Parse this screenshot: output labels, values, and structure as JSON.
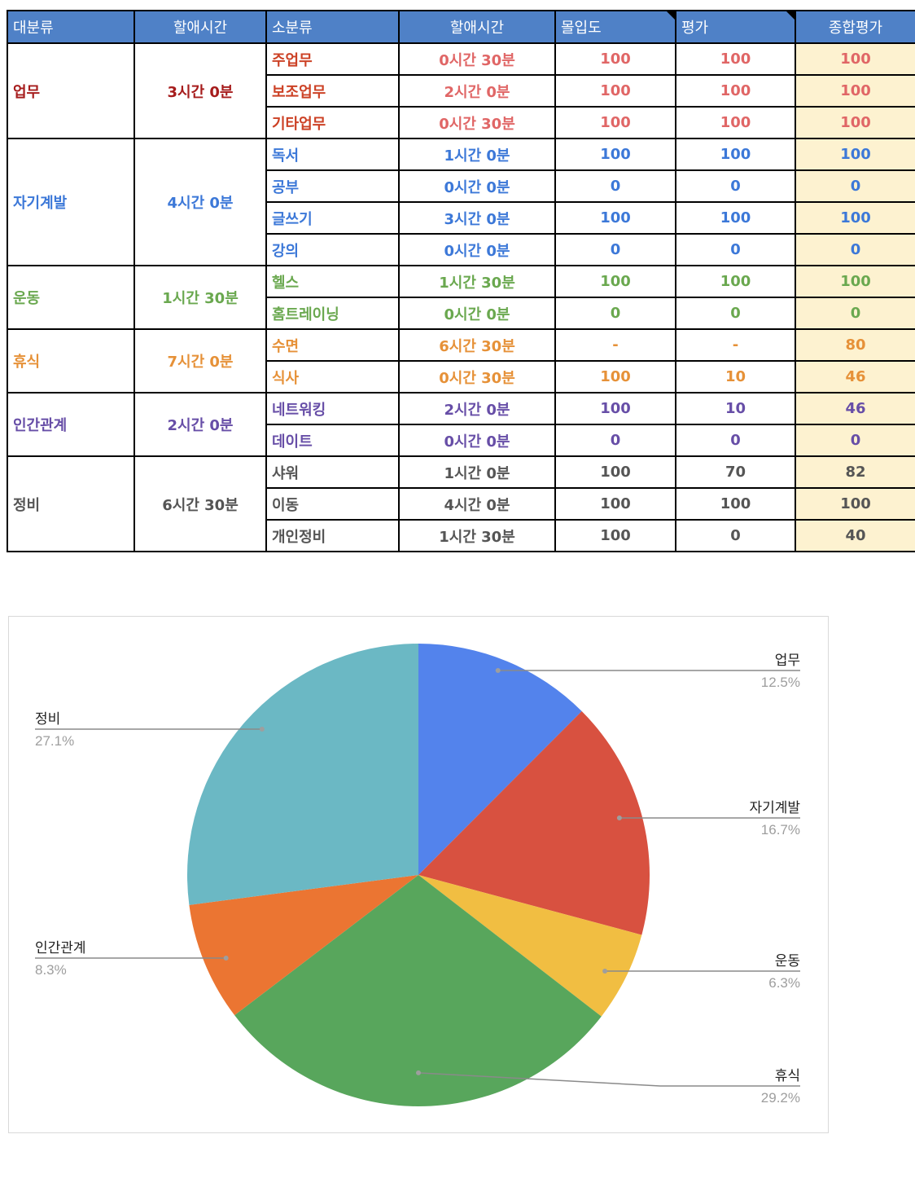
{
  "table": {
    "headers": [
      "대분류",
      "할애시간",
      "소분류",
      "할애시간",
      "몰입도",
      "평가",
      "종합평가"
    ],
    "groups": [
      {
        "name": "업무",
        "time": "3시간 0분",
        "color": "red",
        "items": [
          {
            "name": "주업무",
            "time": "0시간 30분",
            "focus": "100",
            "eval": "100",
            "total": "100"
          },
          {
            "name": "보조업무",
            "time": "2시간 0분",
            "focus": "100",
            "eval": "100",
            "total": "100"
          },
          {
            "name": "기타업무",
            "time": "0시간 30분",
            "focus": "100",
            "eval": "100",
            "total": "100"
          }
        ]
      },
      {
        "name": "자기계발",
        "time": "4시간 0분",
        "color": "blue",
        "items": [
          {
            "name": "독서",
            "time": "1시간 0분",
            "focus": "100",
            "eval": "100",
            "total": "100"
          },
          {
            "name": "공부",
            "time": "0시간 0분",
            "focus": "0",
            "eval": "0",
            "total": "0"
          },
          {
            "name": "글쓰기",
            "time": "3시간 0분",
            "focus": "100",
            "eval": "100",
            "total": "100"
          },
          {
            "name": "강의",
            "time": "0시간 0분",
            "focus": "0",
            "eval": "0",
            "total": "0"
          }
        ]
      },
      {
        "name": "운동",
        "time": "1시간 30분",
        "color": "green",
        "items": [
          {
            "name": "헬스",
            "time": "1시간 30분",
            "focus": "100",
            "eval": "100",
            "total": "100"
          },
          {
            "name": "홈트레이닝",
            "time": "0시간 0분",
            "focus": "0",
            "eval": "0",
            "total": "0"
          }
        ]
      },
      {
        "name": "휴식",
        "time": "7시간 0분",
        "color": "orange",
        "items": [
          {
            "name": "수면",
            "time": "6시간 30분",
            "focus": "-",
            "eval": "-",
            "total": "80"
          },
          {
            "name": "식사",
            "time": "0시간 30분",
            "focus": "100",
            "eval": "10",
            "total": "46"
          }
        ]
      },
      {
        "name": "인간관계",
        "time": "2시간 0분",
        "color": "purple",
        "items": [
          {
            "name": "네트워킹",
            "time": "2시간 0분",
            "focus": "100",
            "eval": "10",
            "total": "46"
          },
          {
            "name": "데이트",
            "time": "0시간 0분",
            "focus": "0",
            "eval": "0",
            "total": "0"
          }
        ]
      },
      {
        "name": "정비",
        "time": "6시간 30분",
        "color": "gray",
        "items": [
          {
            "name": "샤워",
            "time": "1시간 0분",
            "focus": "100",
            "eval": "70",
            "total": "82"
          },
          {
            "name": "이동",
            "time": "4시간 0분",
            "focus": "100",
            "eval": "100",
            "total": "100"
          },
          {
            "name": "개인정비",
            "time": "1시간 30분",
            "focus": "100",
            "eval": "0",
            "total": "40"
          }
        ]
      }
    ]
  },
  "chart_data": {
    "type": "pie",
    "labels": [
      "업무",
      "자기계발",
      "운동",
      "휴식",
      "인간관계",
      "정비"
    ],
    "values": [
      12.5,
      16.7,
      6.3,
      29.2,
      8.3,
      27.1
    ],
    "percent_labels": [
      "12.5%",
      "16.7%",
      "6.3%",
      "29.2%",
      "8.3%",
      "27.1%"
    ],
    "colors": [
      "#5383ec",
      "#d85140",
      "#f1be42",
      "#58a65c",
      "#eb7532",
      "#6bb8c4"
    ],
    "title": "",
    "legend": "labeled slices with leader lines"
  }
}
